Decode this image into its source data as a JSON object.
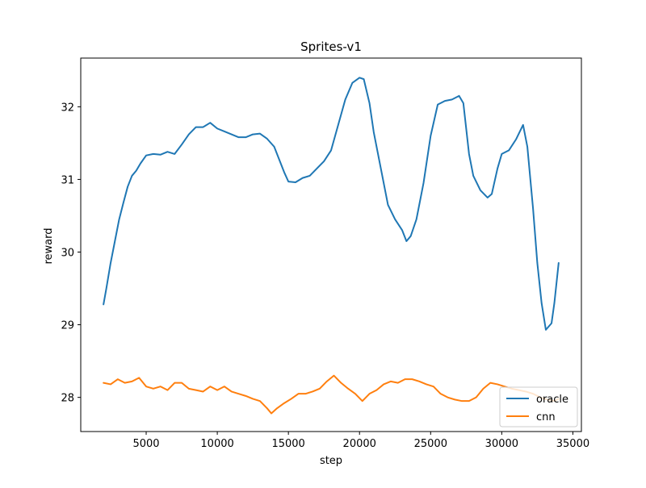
{
  "chart_data": {
    "type": "line",
    "title": "Sprites-v1",
    "xlabel": "step",
    "ylabel": "reward",
    "xlim": [
      400,
      35600
    ],
    "ylim": [
      27.53,
      32.67
    ],
    "xticks": [
      5000,
      10000,
      15000,
      20000,
      25000,
      30000,
      35000
    ],
    "yticks": [
      28,
      29,
      30,
      31,
      32
    ],
    "grid": false,
    "legend_position": "bottom-right",
    "series": [
      {
        "name": "oracle",
        "color": "#1f77b4",
        "points": [
          [
            2000,
            29.28
          ],
          [
            2200,
            29.5
          ],
          [
            2500,
            29.85
          ],
          [
            2800,
            30.15
          ],
          [
            3100,
            30.45
          ],
          [
            3400,
            30.68
          ],
          [
            3700,
            30.9
          ],
          [
            4000,
            31.05
          ],
          [
            4300,
            31.12
          ],
          [
            4600,
            31.22
          ],
          [
            5000,
            31.33
          ],
          [
            5500,
            31.35
          ],
          [
            6000,
            31.34
          ],
          [
            6500,
            31.38
          ],
          [
            7000,
            31.35
          ],
          [
            7500,
            31.48
          ],
          [
            8000,
            31.62
          ],
          [
            8500,
            31.72
          ],
          [
            9000,
            31.72
          ],
          [
            9500,
            31.78
          ],
          [
            10000,
            31.7
          ],
          [
            10500,
            31.66
          ],
          [
            11000,
            31.62
          ],
          [
            11500,
            31.58
          ],
          [
            12000,
            31.58
          ],
          [
            12500,
            31.62
          ],
          [
            13000,
            31.63
          ],
          [
            13500,
            31.56
          ],
          [
            14000,
            31.45
          ],
          [
            14300,
            31.3
          ],
          [
            14700,
            31.1
          ],
          [
            15000,
            30.97
          ],
          [
            15500,
            30.96
          ],
          [
            16000,
            31.02
          ],
          [
            16500,
            31.05
          ],
          [
            17000,
            31.15
          ],
          [
            17500,
            31.25
          ],
          [
            18000,
            31.4
          ],
          [
            18500,
            31.75
          ],
          [
            19000,
            32.1
          ],
          [
            19500,
            32.33
          ],
          [
            20000,
            32.4
          ],
          [
            20300,
            32.38
          ],
          [
            20700,
            32.05
          ],
          [
            21000,
            31.65
          ],
          [
            21500,
            31.15
          ],
          [
            22000,
            30.65
          ],
          [
            22500,
            30.45
          ],
          [
            23000,
            30.3
          ],
          [
            23300,
            30.15
          ],
          [
            23600,
            30.22
          ],
          [
            24000,
            30.45
          ],
          [
            24500,
            30.95
          ],
          [
            25000,
            31.6
          ],
          [
            25500,
            32.03
          ],
          [
            26000,
            32.08
          ],
          [
            26500,
            32.1
          ],
          [
            27000,
            32.15
          ],
          [
            27300,
            32.05
          ],
          [
            27700,
            31.35
          ],
          [
            28000,
            31.05
          ],
          [
            28500,
            30.85
          ],
          [
            29000,
            30.75
          ],
          [
            29300,
            30.8
          ],
          [
            29700,
            31.15
          ],
          [
            30000,
            31.35
          ],
          [
            30500,
            31.4
          ],
          [
            31000,
            31.55
          ],
          [
            31500,
            31.75
          ],
          [
            31800,
            31.45
          ],
          [
            32200,
            30.6
          ],
          [
            32500,
            29.85
          ],
          [
            32800,
            29.3
          ],
          [
            33100,
            28.93
          ],
          [
            33500,
            29.02
          ],
          [
            33700,
            29.3
          ],
          [
            34000,
            29.85
          ]
        ]
      },
      {
        "name": "cnn",
        "color": "#ff7f0e",
        "points": [
          [
            2000,
            28.2
          ],
          [
            2500,
            28.18
          ],
          [
            3000,
            28.25
          ],
          [
            3500,
            28.2
          ],
          [
            4000,
            28.22
          ],
          [
            4500,
            28.27
          ],
          [
            5000,
            28.15
          ],
          [
            5500,
            28.12
          ],
          [
            6000,
            28.15
          ],
          [
            6500,
            28.1
          ],
          [
            7000,
            28.2
          ],
          [
            7500,
            28.2
          ],
          [
            8000,
            28.12
          ],
          [
            8500,
            28.1
          ],
          [
            9000,
            28.08
          ],
          [
            9500,
            28.15
          ],
          [
            10000,
            28.1
          ],
          [
            10500,
            28.15
          ],
          [
            11000,
            28.08
          ],
          [
            11500,
            28.05
          ],
          [
            12000,
            28.02
          ],
          [
            12500,
            27.98
          ],
          [
            13000,
            27.95
          ],
          [
            13500,
            27.85
          ],
          [
            13800,
            27.78
          ],
          [
            14200,
            27.85
          ],
          [
            14700,
            27.92
          ],
          [
            15200,
            27.98
          ],
          [
            15700,
            28.05
          ],
          [
            16200,
            28.05
          ],
          [
            16700,
            28.08
          ],
          [
            17200,
            28.12
          ],
          [
            17700,
            28.22
          ],
          [
            18200,
            28.3
          ],
          [
            18700,
            28.2
          ],
          [
            19200,
            28.12
          ],
          [
            19700,
            28.05
          ],
          [
            20200,
            27.95
          ],
          [
            20700,
            28.05
          ],
          [
            21200,
            28.1
          ],
          [
            21700,
            28.18
          ],
          [
            22200,
            28.22
          ],
          [
            22700,
            28.2
          ],
          [
            23200,
            28.25
          ],
          [
            23700,
            28.25
          ],
          [
            24200,
            28.22
          ],
          [
            24700,
            28.18
          ],
          [
            25200,
            28.15
          ],
          [
            25700,
            28.05
          ],
          [
            26200,
            28.0
          ],
          [
            26700,
            27.97
          ],
          [
            27200,
            27.95
          ],
          [
            27700,
            27.95
          ],
          [
            28200,
            28.0
          ],
          [
            28700,
            28.12
          ],
          [
            29200,
            28.2
          ],
          [
            29700,
            28.18
          ],
          [
            30200,
            28.15
          ],
          [
            30700,
            28.12
          ],
          [
            31200,
            28.1
          ],
          [
            31700,
            28.08
          ],
          [
            32200,
            28.05
          ],
          [
            32700,
            28.0
          ],
          [
            33200,
            27.97
          ],
          [
            33700,
            27.95
          ],
          [
            34000,
            27.98
          ]
        ]
      }
    ]
  }
}
